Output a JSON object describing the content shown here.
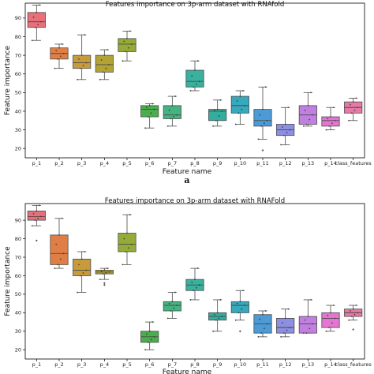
{
  "charts": [
    {
      "type": "box",
      "title": "Features importance on 3p-arm dataset with RNAfold",
      "xlabel": "Feature name",
      "ylabel": "Feature importance",
      "ylim": [
        15,
        98
      ],
      "yticks": [
        20,
        30,
        40,
        50,
        60,
        70,
        80,
        90
      ],
      "sublabel": "a",
      "categories": [
        "p_1",
        "p_2",
        "p_3",
        "p_4",
        "p_5",
        "p_6",
        "p_7",
        "p_8",
        "p_9",
        "p_10",
        "p_11",
        "p_12",
        "p_13",
        "p_14",
        "class_features"
      ],
      "colors": [
        "#e8707a",
        "#e07f45",
        "#c79a3c",
        "#b3a334",
        "#94ab37",
        "#4aae4c",
        "#46b281",
        "#3ab19c",
        "#34ad9f",
        "#37a9bd",
        "#4d9bd6",
        "#8d8fe0",
        "#c17fe0",
        "#e376d0",
        "#e57aa5"
      ],
      "boxes": [
        {
          "min": 78,
          "q1": 85,
          "median": 88,
          "q3": 93,
          "max": 97,
          "outliers": []
        },
        {
          "min": 63,
          "q1": 68,
          "median": 71,
          "q3": 74,
          "max": 76,
          "outliers": []
        },
        {
          "min": 57,
          "q1": 63,
          "median": 66,
          "q3": 70,
          "max": 81,
          "outliers": []
        },
        {
          "min": 57,
          "q1": 61,
          "median": 65,
          "q3": 70,
          "max": 73,
          "outliers": []
        },
        {
          "min": 67,
          "q1": 72,
          "median": 76,
          "q3": 79,
          "max": 83,
          "outliers": []
        },
        {
          "min": 31,
          "q1": 37,
          "median": 41,
          "q3": 43,
          "max": 44,
          "outliers": []
        },
        {
          "min": 32,
          "q1": 36,
          "median": 38,
          "q3": 43,
          "max": 48,
          "outliers": []
        },
        {
          "min": 51,
          "q1": 53,
          "median": 56,
          "q3": 62,
          "max": 67,
          "outliers": []
        },
        {
          "min": 32,
          "q1": 35,
          "median": 40,
          "q3": 41,
          "max": 46,
          "outliers": []
        },
        {
          "min": 33,
          "q1": 39,
          "median": 43,
          "q3": 48,
          "max": 51,
          "outliers": []
        },
        {
          "min": 25,
          "q1": 32,
          "median": 35,
          "q3": 41,
          "max": 53,
          "outliers": [
            19
          ]
        },
        {
          "min": 22,
          "q1": 27,
          "median": 30,
          "q3": 33,
          "max": 42,
          "outliers": []
        },
        {
          "min": 32,
          "q1": 33,
          "median": 38,
          "q3": 43,
          "max": 50,
          "outliers": []
        },
        {
          "min": 30,
          "q1": 32,
          "median": 35,
          "q3": 37,
          "max": 42,
          "outliers": []
        },
        {
          "min": 35,
          "q1": 39,
          "median": 42,
          "q3": 45,
          "max": 47,
          "outliers": []
        }
      ]
    },
    {
      "type": "box",
      "title": "Features importance on 3p-arm dataset with RNAFold",
      "xlabel": "Feature name",
      "ylabel": "Feature importance",
      "ylim": [
        15,
        99
      ],
      "yticks": [
        20,
        30,
        40,
        50,
        60,
        70,
        80,
        90
      ],
      "categories": [
        "p_1",
        "p_2",
        "p_3",
        "p_4",
        "p_5",
        "p_6",
        "p_7",
        "p_8",
        "p_9",
        "p_10",
        "p_11",
        "p_12",
        "p_13",
        "p_14",
        "class_features"
      ],
      "colors": [
        "#e8707a",
        "#e07f45",
        "#c79a3c",
        "#b3a334",
        "#94ab37",
        "#4aae4c",
        "#46b281",
        "#3ab19c",
        "#34ad9f",
        "#37a9bd",
        "#4d9bd6",
        "#8d8fe0",
        "#c17fe0",
        "#e376d0",
        "#e57aa5"
      ],
      "boxes": [
        {
          "min": 87,
          "q1": 90,
          "median": 92,
          "q3": 95,
          "max": 98,
          "outliers": [
            79
          ]
        },
        {
          "min": 64,
          "q1": 66,
          "median": 72,
          "q3": 82,
          "max": 91,
          "outliers": []
        },
        {
          "min": 51,
          "q1": 60,
          "median": 63,
          "q3": 69,
          "max": 73,
          "outliers": []
        },
        {
          "min": 58,
          "q1": 61,
          "median": 62,
          "q3": 63,
          "max": 64,
          "outliers": [
            55,
            56
          ]
        },
        {
          "min": 66,
          "q1": 73,
          "median": 77,
          "q3": 83,
          "max": 93,
          "outliers": []
        },
        {
          "min": 20,
          "q1": 24,
          "median": 27,
          "q3": 30,
          "max": 35,
          "outliers": []
        },
        {
          "min": 37,
          "q1": 41,
          "median": 44,
          "q3": 46,
          "max": 51,
          "outliers": []
        },
        {
          "min": 47,
          "q1": 52,
          "median": 55,
          "q3": 58,
          "max": 64,
          "outliers": []
        },
        {
          "min": 30,
          "q1": 36,
          "median": 38,
          "q3": 40,
          "max": 47,
          "outliers": []
        },
        {
          "min": 36,
          "q1": 40,
          "median": 44,
          "q3": 46,
          "max": 52,
          "outliers": [
            30
          ]
        },
        {
          "min": 27,
          "q1": 29,
          "median": 34,
          "q3": 39,
          "max": 41,
          "outliers": []
        },
        {
          "min": 27,
          "q1": 29,
          "median": 32,
          "q3": 37,
          "max": 42,
          "outliers": []
        },
        {
          "min": 29,
          "q1": 29,
          "median": 34,
          "q3": 38,
          "max": 47,
          "outliers": []
        },
        {
          "min": 30,
          "q1": 32,
          "median": 37,
          "q3": 40,
          "max": 44,
          "outliers": []
        },
        {
          "min": 36,
          "q1": 38,
          "median": 40,
          "q3": 42,
          "max": 44,
          "outliers": [
            31
          ]
        }
      ]
    }
  ]
}
